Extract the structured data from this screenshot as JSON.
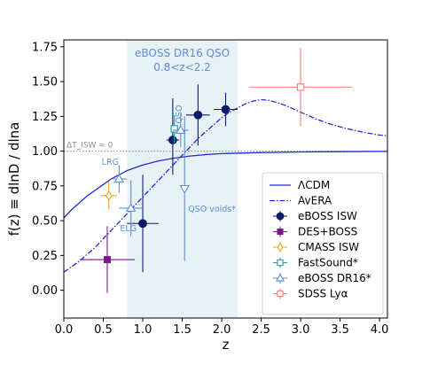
{
  "chart_data": {
    "type": "scatter",
    "xlabel": "z",
    "ylabel": "f(z) ≡ dlnD / dlna",
    "xlim": [
      0.0,
      4.1
    ],
    "ylim": [
      -0.2,
      1.8
    ],
    "xticks": [
      "0.0",
      "0.5",
      "1.0",
      "1.5",
      "2.0",
      "2.5",
      "3.0",
      "3.5",
      "4.0"
    ],
    "yticks": [
      "0.00",
      "0.25",
      "0.50",
      "0.75",
      "1.00",
      "1.25",
      "1.50",
      "1.75"
    ],
    "grid": false,
    "legend_position": "lower-right",
    "shaded_band": {
      "x": [
        0.8,
        2.2
      ],
      "color": "#e8f1f6",
      "label_line1": "eBOSS DR16 QSO",
      "label_line2": "0.8<z<2.2",
      "label_color": "#5b8fd6"
    },
    "reference_line": {
      "y": 1.0,
      "label": "ΔT_ISW = 0",
      "style": "dotted",
      "color": "#888888"
    },
    "curves": [
      {
        "name": "ΛCDM",
        "style": "solid",
        "color": "#1f2ad6",
        "x": [
          0.0,
          0.1,
          0.2,
          0.3,
          0.4,
          0.5,
          0.6,
          0.7,
          0.8,
          0.9,
          1.0,
          1.2,
          1.4,
          1.6,
          1.8,
          2.0,
          2.5,
          3.0,
          3.5,
          4.1
        ],
        "y": [
          0.52,
          0.58,
          0.63,
          0.68,
          0.72,
          0.76,
          0.8,
          0.83,
          0.86,
          0.88,
          0.9,
          0.93,
          0.95,
          0.965,
          0.975,
          0.982,
          0.99,
          0.994,
          0.996,
          0.998
        ]
      },
      {
        "name": "AvERA",
        "style": "dashdot",
        "color": "#1f2ad6",
        "x": [
          0.0,
          0.1,
          0.2,
          0.3,
          0.4,
          0.5,
          0.6,
          0.7,
          0.8,
          0.9,
          1.0,
          1.1,
          1.2,
          1.3,
          1.4,
          1.5,
          1.6,
          1.7,
          1.8,
          1.9,
          2.0,
          2.1,
          2.2,
          2.3,
          2.4,
          2.5,
          2.6,
          2.7,
          2.8,
          2.9,
          3.0,
          3.2,
          3.4,
          3.6,
          3.8,
          4.0,
          4.1
        ],
        "y": [
          0.13,
          0.17,
          0.21,
          0.26,
          0.31,
          0.37,
          0.43,
          0.49,
          0.55,
          0.61,
          0.67,
          0.73,
          0.79,
          0.85,
          0.91,
          0.97,
          1.03,
          1.09,
          1.14,
          1.19,
          1.24,
          1.28,
          1.31,
          1.34,
          1.36,
          1.37,
          1.365,
          1.35,
          1.33,
          1.305,
          1.28,
          1.23,
          1.19,
          1.16,
          1.135,
          1.115,
          1.11
        ]
      }
    ],
    "series": [
      {
        "name": "eBOSS ISW",
        "marker": "filled-circle",
        "color": "#0a1a6e",
        "points": [
          {
            "x": 1.0,
            "y": 0.48,
            "xerr": [
              0.2,
              0.2
            ],
            "yerr": [
              0.35,
              0.35
            ]
          },
          {
            "x": 1.38,
            "y": 1.08,
            "xerr": [
              0.08,
              0.08
            ],
            "yerr": [
              0.25,
              0.3
            ]
          },
          {
            "x": 1.7,
            "y": 1.26,
            "xerr": [
              0.15,
              0.15
            ],
            "yerr": [
              0.22,
              0.22
            ]
          },
          {
            "x": 2.05,
            "y": 1.3,
            "xerr": [
              0.15,
              0.15
            ],
            "yerr": [
              0.12,
              0.12
            ]
          }
        ]
      },
      {
        "name": "DES+BOSS",
        "marker": "filled-square",
        "color": "#7a1a8a",
        "points": [
          {
            "x": 0.55,
            "y": 0.22,
            "xerr": [
              0.35,
              0.35
            ],
            "yerr": [
              0.24,
              0.24
            ]
          }
        ]
      },
      {
        "name": "CMASS ISW",
        "marker": "open-diamond",
        "color": "#f0a020",
        "points": [
          {
            "x": 0.57,
            "y": 0.68,
            "xerr": [
              0.1,
              0.1
            ],
            "yerr": [
              0.1,
              0.1
            ]
          }
        ]
      },
      {
        "name": "FastSound*",
        "marker": "open-square",
        "color": "#2a9aa0",
        "points": [
          {
            "x": 1.4,
            "y": 1.16,
            "xerr": [
              0.05,
              0.05
            ],
            "yerr": [
              0.1,
              0.1
            ]
          }
        ]
      },
      {
        "name": "eBOSS DR16*",
        "marker": "open-triangle",
        "color": "#5b8fd6",
        "points": [
          {
            "x": 0.7,
            "y": 0.8,
            "xerr": [
              0.1,
              0.1
            ],
            "yerr": [
              0.1,
              0.1
            ],
            "label": "LRG"
          },
          {
            "x": 0.85,
            "y": 0.59,
            "xerr": [
              0.15,
              0.15
            ],
            "yerr": [
              0.2,
              0.2
            ],
            "label": "ELG"
          },
          {
            "x": 1.48,
            "y": 1.15,
            "xerr": [
              0.1,
              0.1
            ],
            "yerr": [
              0.12,
              0.12
            ],
            "label": "QSO"
          },
          {
            "x": 1.53,
            "y": 0.73,
            "xerr": [
              0.0,
              0.0
            ],
            "yerr": [
              0.52,
              0.52
            ],
            "label": "QSO voids*"
          }
        ]
      },
      {
        "name": "SDSS Lyα",
        "marker": "open-square",
        "color": "#f08070",
        "points": [
          {
            "x": 3.0,
            "y": 1.46,
            "xerr": [
              0.65,
              0.65
            ],
            "yerr": [
              0.28,
              0.28
            ]
          }
        ]
      }
    ]
  }
}
